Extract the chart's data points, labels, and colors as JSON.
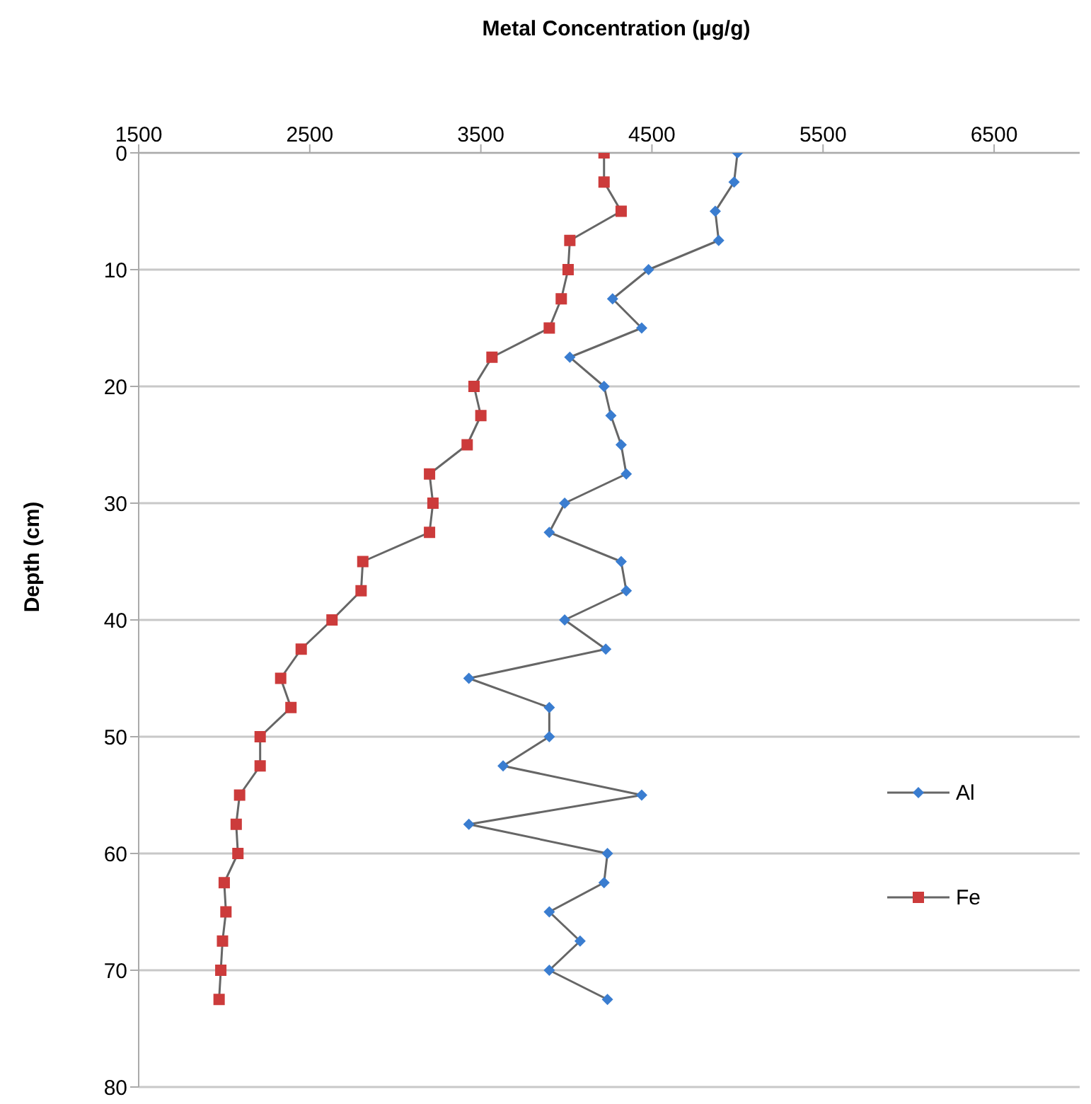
{
  "chart_data": {
    "type": "line",
    "xlabel": "Metal Concentration (µg/g)",
    "ylabel": "Depth (cm)",
    "xlim": [
      1500,
      7000
    ],
    "xticks": [
      1500,
      2500,
      3500,
      4500,
      5500,
      6500
    ],
    "ylim": [
      80,
      0
    ],
    "yticks": [
      0,
      10,
      20,
      30,
      40,
      50,
      60,
      70,
      80
    ],
    "grid": "y",
    "legend": "right",
    "line_style": "solid",
    "series": [
      {
        "name": "Al",
        "color": "#3a7dd0",
        "marker": "diamond",
        "x": [
          5000,
          4980,
          4870,
          4890,
          4480,
          4270,
          4440,
          4020,
          4220,
          4260,
          4320,
          4350,
          3990,
          3900,
          4320,
          4350,
          3990,
          4230,
          3430,
          3900,
          3900,
          3630,
          4440,
          3430,
          4240,
          4220,
          3900,
          4080,
          3900,
          4240
        ],
        "values": [
          0,
          2.5,
          5,
          7.5,
          10,
          12.5,
          15,
          17.5,
          20,
          22.5,
          25,
          27.5,
          30,
          32.5,
          35,
          37.5,
          40,
          42.5,
          45,
          47.5,
          50,
          52.5,
          55,
          57.5,
          60,
          62.5,
          65,
          67.5,
          70,
          72.5
        ]
      },
      {
        "name": "Fe",
        "color": "#cc3b3b",
        "marker": "square",
        "x": [
          4220,
          4220,
          4320,
          4020,
          4010,
          3970,
          3900,
          3565,
          3460,
          3500,
          3420,
          3200,
          3220,
          3200,
          2810,
          2800,
          2630,
          2450,
          2330,
          2390,
          2210,
          2210,
          2090,
          2070,
          2080,
          2000,
          2010,
          1990,
          1980,
          1970
        ],
        "values": [
          0,
          2.5,
          5,
          7.5,
          10,
          12.5,
          15,
          17.5,
          20,
          22.5,
          25,
          27.5,
          30,
          32.5,
          35,
          37.5,
          40,
          42.5,
          45,
          47.5,
          50,
          52.5,
          55,
          57.5,
          60,
          62.5,
          65,
          67.5,
          70,
          72.5
        ]
      }
    ]
  }
}
